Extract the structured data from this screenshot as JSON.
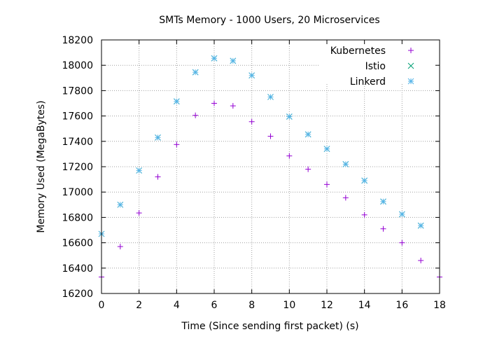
{
  "chart_data": {
    "type": "scatter",
    "title": "SMTs Memory - 1000 Users, 20 Microservices",
    "xlabel": "Time (Since sending first packet) (s)",
    "ylabel": "Memory Used (MegaBytes)",
    "xlim": [
      0,
      18
    ],
    "ylim": [
      16200,
      18200
    ],
    "xticks": [
      0,
      2,
      4,
      6,
      8,
      10,
      12,
      14,
      16,
      18
    ],
    "yticks": [
      16200,
      16400,
      16600,
      16800,
      17000,
      17200,
      17400,
      17600,
      17800,
      18000,
      18200
    ],
    "grid": true,
    "legend_position": "top-right",
    "series": [
      {
        "name": "Kubernetes",
        "marker": "plus",
        "color": "#9400D3",
        "x": [
          0,
          1,
          2,
          3,
          4,
          5,
          6,
          7,
          8,
          9,
          10,
          11,
          12,
          13,
          14,
          15,
          16,
          17,
          18
        ],
        "y": [
          16330,
          16570,
          16835,
          17120,
          17375,
          17605,
          17700,
          17680,
          17555,
          17440,
          17285,
          17180,
          17060,
          16955,
          16820,
          16710,
          16600,
          16460,
          16330
        ]
      },
      {
        "name": "Istio",
        "marker": "cross",
        "color": "#009E73",
        "x": [
          0,
          1,
          2,
          3,
          4,
          5,
          6,
          7,
          8,
          9,
          10,
          11,
          12,
          13,
          14,
          15,
          16,
          17
        ],
        "y": [
          16670,
          16900,
          17170,
          17430,
          17715,
          17945,
          18055,
          18035,
          17920,
          17750,
          17595,
          17455,
          17340,
          17220,
          17090,
          16925,
          16825,
          16735
        ]
      },
      {
        "name": "Linkerd",
        "marker": "star",
        "color": "#56B4E9",
        "x": [
          0,
          1,
          2,
          3,
          4,
          5,
          6,
          7,
          8,
          9,
          10,
          11,
          12,
          13,
          14,
          15,
          16,
          17
        ],
        "y": [
          16670,
          16900,
          17170,
          17430,
          17715,
          17945,
          18055,
          18035,
          17920,
          17750,
          17595,
          17455,
          17340,
          17220,
          17090,
          16925,
          16825,
          16735
        ]
      }
    ]
  }
}
